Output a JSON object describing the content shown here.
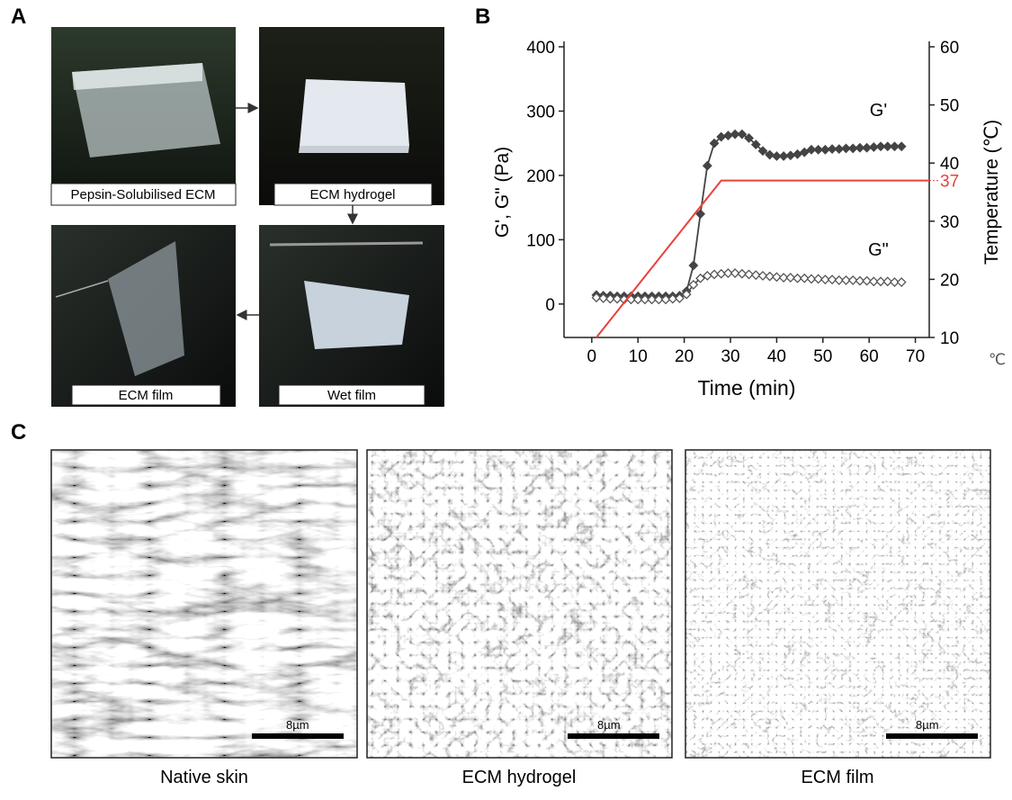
{
  "panels": {
    "a": {
      "label": "A",
      "photos": [
        {
          "caption": "Pepsin-Solubilised ECM"
        },
        {
          "caption": "ECM hydrogel"
        },
        {
          "caption": "Wet film"
        },
        {
          "caption": "ECM film"
        }
      ]
    },
    "b": {
      "label": "B"
    },
    "c": {
      "label": "C",
      "images": [
        {
          "scale_bar": "8µm",
          "caption": "Native skin"
        },
        {
          "scale_bar": "8µm",
          "caption": "ECM hydrogel"
        },
        {
          "scale_bar": "8µm",
          "caption": "ECM film"
        }
      ]
    }
  },
  "chart_data": {
    "type": "line",
    "x_label": "Time (min)",
    "y_label": "G', G\" (Pa)",
    "y2_label": "Temperature  (℃)",
    "x_unit_note": "℃",
    "y2_marker": 37,
    "y2_marker_color": "#e8423a",
    "x": [
      1,
      2.5,
      4,
      5.5,
      7,
      8.5,
      10,
      11.5,
      13,
      14.5,
      16,
      17.5,
      19,
      20.5,
      22,
      23.5,
      25,
      26.5,
      28,
      29.5,
      31,
      32.5,
      34,
      35.5,
      37,
      38.5,
      40,
      41.5,
      43,
      44.5,
      46,
      47.5,
      49,
      50.5,
      52,
      53.5,
      55,
      56.5,
      58,
      59.5,
      61,
      62.5,
      64,
      65.5,
      67
    ],
    "series": [
      {
        "name": "G'",
        "color": "#444444",
        "marker": "filled",
        "values": [
          14,
          13,
          13,
          12,
          12,
          12,
          12,
          12,
          12,
          12,
          12,
          12,
          13,
          20,
          60,
          140,
          215,
          250,
          260,
          262,
          264,
          264,
          258,
          248,
          238,
          232,
          230,
          230,
          231,
          233,
          236,
          240,
          240,
          240,
          241,
          241,
          242,
          242,
          243,
          243,
          244,
          245,
          245,
          245,
          245
        ]
      },
      {
        "name": "G\"",
        "color": "#555555",
        "marker": "open",
        "values": [
          10,
          9,
          8,
          8,
          7,
          7,
          7,
          7,
          7,
          7,
          7,
          8,
          9,
          15,
          30,
          40,
          44,
          46,
          47,
          48,
          48,
          47,
          46,
          45,
          44,
          43,
          42,
          41,
          41,
          40,
          40,
          39,
          39,
          38,
          38,
          37,
          37,
          37,
          36,
          36,
          35,
          35,
          35,
          34,
          34
        ]
      },
      {
        "name": "Temperature",
        "color": "#e8423a",
        "axis": "y2",
        "x": [
          1,
          28,
          73
        ],
        "values": [
          10,
          37,
          37
        ]
      }
    ],
    "annotations": [
      {
        "text": "G'",
        "x": 62,
        "y": 292
      },
      {
        "text": "G\"",
        "x": 62,
        "y": 75
      }
    ],
    "xlim": [
      -6,
      73
    ],
    "xticks": [
      0,
      10,
      20,
      30,
      40,
      50,
      60,
      70
    ],
    "ylim": [
      -52,
      400
    ],
    "yticks": [
      0,
      100,
      200,
      300,
      400
    ],
    "y2lim": [
      10,
      60
    ],
    "y2ticks": [
      10,
      20,
      30,
      40,
      50,
      60
    ]
  }
}
